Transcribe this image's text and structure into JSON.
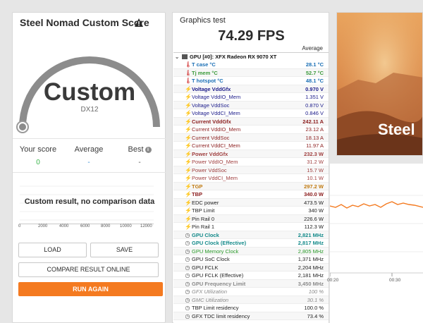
{
  "score_card": {
    "title": "Steel Nomad Custom Score",
    "gauge_text": "Custom",
    "gauge_sub": "DX12",
    "your_score_label": "Your score",
    "your_score_value": "0",
    "average_label": "Average",
    "average_value": "-",
    "best_label": "Best",
    "best_value": "-",
    "chart_message": "Custom result, no comparison data",
    "axis_ticks": [
      "0",
      "2000",
      "4000",
      "6000",
      "8000",
      "10000",
      "12000"
    ],
    "load_label": "LOAD",
    "save_label": "SAVE",
    "compare_label": "COMPARE RESULT ONLINE",
    "run_again_label": "RUN AGAIN",
    "colors": {
      "accent": "#f47a20",
      "score_green": "#3ab54a",
      "average_blue": "#3a8fd6"
    }
  },
  "graphics_test": {
    "label": "Graphics test",
    "fps": "74.29 FPS",
    "avg_label": "Average"
  },
  "sensor": {
    "header": "GPU [#0]: XFX Radeon RX 9070 XT",
    "rows": [
      {
        "icon": "thermometer-icon",
        "glyph": "🌡",
        "name": "T case °C",
        "value": "28.1 °C",
        "color": "#1a6fb5",
        "bold": true
      },
      {
        "icon": "thermometer-icon",
        "glyph": "🌡",
        "name": "Tj mem °C",
        "value": "52.7 °C",
        "color": "#3a9a3a",
        "bold": true
      },
      {
        "icon": "thermometer-icon",
        "glyph": "🌡",
        "name": "T hotspot °C",
        "value": "48.1 °C",
        "color": "#1a6fb5",
        "bold": true
      },
      {
        "icon": "lightning-icon",
        "glyph": "⚡",
        "name": "Voltage VddGfx",
        "value": "0.970 V",
        "color": "#1b1b8a",
        "bold": true
      },
      {
        "icon": "lightning-icon",
        "glyph": "⚡",
        "name": "Voltage VddIO_Mem",
        "value": "1.351 V",
        "color": "#1b1b8a",
        "bold": false
      },
      {
        "icon": "lightning-icon",
        "glyph": "⚡",
        "name": "Voltage VddSoc",
        "value": "0.870 V",
        "color": "#1b1b8a",
        "bold": false
      },
      {
        "icon": "lightning-icon",
        "glyph": "⚡",
        "name": "Voltage VddCI_Mem",
        "value": "0.846 V",
        "color": "#1b1b8a",
        "bold": false
      },
      {
        "icon": "lightning-icon",
        "glyph": "⚡",
        "name": "Current VddGfx",
        "value": "242.11 A",
        "color": "#8a1b1b",
        "bold": true
      },
      {
        "icon": "lightning-icon",
        "glyph": "⚡",
        "name": "Current VddIO_Mem",
        "value": "23.12 A",
        "color": "#8a1b1b",
        "bold": false
      },
      {
        "icon": "lightning-icon",
        "glyph": "⚡",
        "name": "Current VddSoc",
        "value": "18.13 A",
        "color": "#8a1b1b",
        "bold": false
      },
      {
        "icon": "lightning-icon",
        "glyph": "⚡",
        "name": "Current VddCI_Mem",
        "value": "11.97 A",
        "color": "#8a1b1b",
        "bold": false
      },
      {
        "icon": "lightning-icon",
        "glyph": "⚡",
        "name": "Power VddGfx",
        "value": "232.3 W",
        "color": "#a04040",
        "bold": true
      },
      {
        "icon": "lightning-icon",
        "glyph": "⚡",
        "name": "Power VddIO_Mem",
        "value": "31.2 W",
        "color": "#a04040",
        "bold": false
      },
      {
        "icon": "lightning-icon",
        "glyph": "⚡",
        "name": "Power VddSoc",
        "value": "15.7 W",
        "color": "#a04040",
        "bold": false
      },
      {
        "icon": "lightning-icon",
        "glyph": "⚡",
        "name": "Power VddCI_Mem",
        "value": "10.1 W",
        "color": "#a04040",
        "bold": false
      },
      {
        "icon": "lightning-icon",
        "glyph": "⚡",
        "name": "TGP",
        "value": "297.2 W",
        "color": "#c07a10",
        "bold": true
      },
      {
        "icon": "lightning-icon",
        "glyph": "⚡",
        "name": "TBP",
        "value": "340.0 W",
        "color": "#8a1b1b",
        "bold": true
      },
      {
        "icon": "lightning-icon",
        "glyph": "⚡",
        "name": "EDC power",
        "value": "473.5 W",
        "color": "#222222",
        "bold": false
      },
      {
        "icon": "lightning-icon",
        "glyph": "⚡",
        "name": "TBP Limit",
        "value": "340 W",
        "color": "#222222",
        "bold": false
      },
      {
        "icon": "lightning-icon",
        "glyph": "⚡",
        "name": "Pin Rail 0",
        "value": "226.6 W",
        "color": "#222222",
        "bold": false
      },
      {
        "icon": "lightning-icon",
        "glyph": "⚡",
        "name": "Pin Rail 1",
        "value": "112.3 W",
        "color": "#222222",
        "bold": false
      },
      {
        "icon": "clock-icon",
        "glyph": "◷",
        "name": "GPU Clock",
        "value": "2,821 MHz",
        "color": "#148a8a",
        "bold": true
      },
      {
        "icon": "clock-icon",
        "glyph": "◷",
        "name": "GPU Clock (Effective)",
        "value": "2,817 MHz",
        "color": "#148a8a",
        "bold": true
      },
      {
        "icon": "clock-icon",
        "glyph": "◷",
        "name": "GPU Memory Clock",
        "value": "2,805 MHz",
        "color": "#2a9a2a",
        "bold": false
      },
      {
        "icon": "clock-icon",
        "glyph": "◷",
        "name": "GPU SoC Clock",
        "value": "1,371 MHz",
        "color": "#222222",
        "bold": false
      },
      {
        "icon": "clock-icon",
        "glyph": "◷",
        "name": "GPU FCLK",
        "value": "2,204 MHz",
        "color": "#222222",
        "bold": false
      },
      {
        "icon": "clock-icon",
        "glyph": "◷",
        "name": "GPU FCLK (Effective)",
        "value": "2,181 MHz",
        "color": "#222222",
        "bold": false
      },
      {
        "icon": "clock-icon",
        "glyph": "◷",
        "name": "GPU Frequency Limit",
        "value": "3,450 MHz",
        "color": "#8a8a8a",
        "bold": true
      },
      {
        "icon": "clock-icon",
        "glyph": "◷",
        "name": "GFX Utilization",
        "value": "100 %",
        "color": "#8a8a8a",
        "bold": false,
        "italic": true
      },
      {
        "icon": "clock-icon",
        "glyph": "◷",
        "name": "GMC Utilization",
        "value": "30.1 %",
        "color": "#8a8a8a",
        "bold": false,
        "italic": true
      },
      {
        "icon": "clock-icon",
        "glyph": "◷",
        "name": "TBP Limit residency",
        "value": "100.0 %",
        "color": "#222222",
        "bold": false
      },
      {
        "icon": "clock-icon",
        "glyph": "◷",
        "name": "GFX TDC limit residency",
        "value": "73.4 %",
        "color": "#222222",
        "bold": false
      }
    ]
  },
  "hero": {
    "title": "Steel"
  },
  "graph": {
    "tick_1": "00:20",
    "tick_2": "00:30",
    "line_color": "#f47a20"
  }
}
